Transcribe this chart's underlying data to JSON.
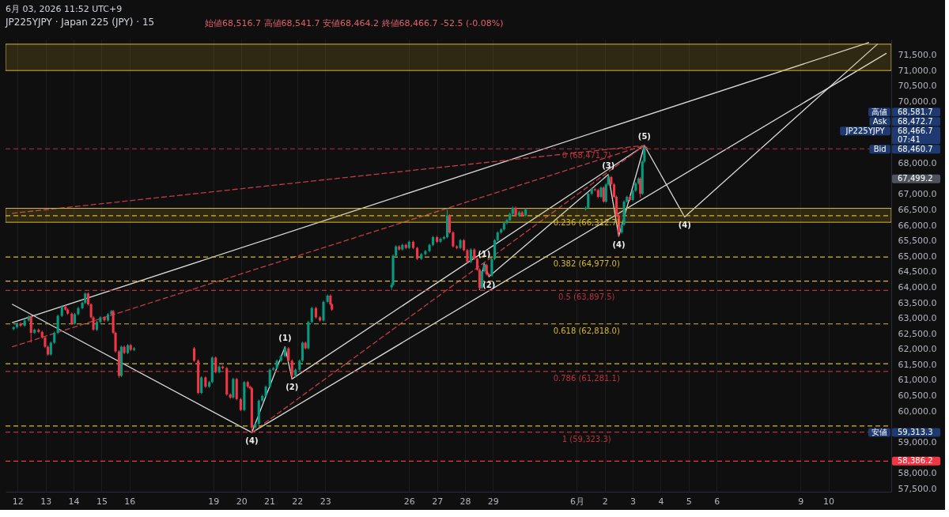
{
  "chart_data": {
    "type": "candlestick",
    "title": "JP225YJPY · Japan 225 (JPY) · 15",
    "subtitle": "始値68,516.7 高値68,541.7 安値68,464.2 終値68,466.7 -52.5 (-0.08%)",
    "x": [
      "2026-05-11T20:30",
      "2026-05-11T23:30",
      "2026-05-12T02:30",
      "2026-05-12T06:00",
      "2026-05-12T09:30",
      "2026-05-12T11:30",
      "2026-05-12T14:30",
      "2026-05-12T18:00",
      "2026-05-12T21:00",
      "2026-05-12T23:30",
      "2026-05-13T02:00",
      "2026-05-13T04:30",
      "2026-05-13T07:30",
      "2026-05-13T10:30",
      "2026-05-13T14:00",
      "2026-05-13T17:00",
      "2026-05-13T19:00",
      "2026-05-13T22:30",
      "2026-05-14T01:00",
      "2026-05-14T04:00",
      "2026-05-14T07:30",
      "2026-05-14T10:00",
      "2026-05-14T12:30",
      "2026-05-14T15:00",
      "2026-05-14T17:00",
      "2026-05-14T20:00",
      "2026-05-14T23:00",
      "2026-05-15T02:30",
      "2026-05-15T05:30",
      "2026-05-15T08:30",
      "2026-05-15T10:00",
      "2026-05-15T12:00",
      "2026-05-15T15:00",
      "2026-05-15T17:00",
      "2026-05-15T19:30",
      "2026-05-15T22:30",
      "2026-05-16T01:00",
      "2026-05-16T04:00",
      "2026-05-18T07:30",
      "2026-05-18T11:00",
      "2026-05-18T13:45",
      "2026-05-18T17:15",
      "2026-05-18T20:30",
      "2026-05-18T23:00",
      "2026-05-19T02:00",
      "2026-05-19T05:00",
      "2026-05-19T08:00",
      "2026-05-19T11:30",
      "2026-05-19T14:30",
      "2026-05-19T17:00",
      "2026-05-19T20:00",
      "2026-05-19T23:30",
      "2026-05-20T02:30",
      "2026-05-20T05:30",
      "2026-05-20T07:30",
      "2026-05-20T09:00",
      "2026-05-20T12:00",
      "2026-05-20T15:00",
      "2026-05-20T18:00",
      "2026-05-20T21:00",
      "2026-05-21T00:30",
      "2026-05-21T03:30",
      "2026-05-21T06:30",
      "2026-05-21T10:00",
      "2026-05-21T13:30",
      "2026-05-21T16:30",
      "2026-05-21T19:30",
      "2026-05-21T22:30",
      "2026-05-22T02:00",
      "2026-05-22T04:30",
      "2026-05-22T07:00",
      "2026-05-22T09:30",
      "2026-05-22T12:30",
      "2026-05-22T16:00",
      "2026-05-22T19:30",
      "2026-05-22T22:30",
      "2026-05-23T02:00",
      "2026-05-23T04:30",
      "2026-05-23T05:45",
      "2026-05-25T09:00",
      "2026-05-25T10:15",
      "2026-05-25T12:45",
      "2026-05-25T15:30",
      "2026-05-25T18:15",
      "2026-05-25T21:15",
      "2026-05-26T00:00",
      "2026-05-26T03:30",
      "2026-05-26T07:00",
      "2026-05-26T10:30",
      "2026-05-26T14:00",
      "2026-05-26T17:30",
      "2026-05-26T20:30",
      "2026-05-27T00:00",
      "2026-05-27T03:00",
      "2026-05-27T06:00",
      "2026-05-27T08:45",
      "2026-05-27T10:45",
      "2026-05-27T13:45",
      "2026-05-27T17:00",
      "2026-05-27T20:00",
      "2026-05-27T23:00",
      "2026-05-28T02:00",
      "2026-05-28T05:00",
      "2026-05-28T08:00",
      "2026-05-28T10:30",
      "2026-05-28T12:30",
      "2026-05-28T14:30",
      "2026-05-28T16:30",
      "2026-05-28T18:30",
      "2026-05-28T20:30",
      "2026-05-28T23:00",
      "2026-05-29T01:30",
      "2026-05-29T04:00",
      "2026-05-29T07:00",
      "2026-05-29T09:30",
      "2026-05-29T12:00",
      "2026-05-29T14:30",
      "2026-05-29T17:00",
      "2026-05-29T19:30",
      "2026-05-29T22:30",
      "2026-05-30T01:00",
      "2026-05-30T04:00",
      "2026-06-01T07:30",
      "2026-06-01T09:45",
      "2026-06-01T12:45",
      "2026-06-01T15:30",
      "2026-06-01T18:15",
      "2026-06-01T20:45",
      "2026-06-01T23:00",
      "2026-06-02T01:00",
      "2026-06-02T03:00",
      "2026-06-02T05:30",
      "2026-06-02T08:00",
      "2026-06-02T10:00",
      "2026-06-02T12:00",
      "2026-06-02T14:30",
      "2026-06-02T16:30",
      "2026-06-02T19:00",
      "2026-06-02T21:30",
      "2026-06-03T00:00",
      "2026-06-03T02:30",
      "2026-06-03T05:00",
      "2026-06-03T06:30",
      "2026-06-03T08:15",
      "2026-06-03T10:00",
      "2026-06-03T11:45"
    ],
    "ohlc": [
      [
        62650,
        62750,
        62610,
        62710
      ],
      [
        62710,
        62870,
        62670,
        62830
      ],
      [
        62830,
        62870,
        62720,
        62760
      ],
      [
        62760,
        62970,
        62720,
        62930
      ],
      [
        62930,
        63100,
        62890,
        63060
      ],
      [
        63060,
        63100,
        62210,
        62530
      ],
      [
        62530,
        62670,
        62490,
        62630
      ],
      [
        62630,
        62670,
        62520,
        62560
      ],
      [
        62560,
        62600,
        62340,
        62380
      ],
      [
        62380,
        62420,
        62040,
        62080
      ],
      [
        62080,
        62120,
        61790,
        61830
      ],
      [
        61830,
        62250,
        61790,
        62210
      ],
      [
        62210,
        62570,
        62170,
        62530
      ],
      [
        62530,
        63120,
        62490,
        63080
      ],
      [
        63080,
        63420,
        63040,
        63380
      ],
      [
        63380,
        63420,
        63240,
        63280
      ],
      [
        63280,
        63320,
        63110,
        63150
      ],
      [
        63150,
        63190,
        62790,
        62830
      ],
      [
        62830,
        63170,
        62790,
        63130
      ],
      [
        63130,
        63370,
        63090,
        63330
      ],
      [
        63330,
        63540,
        63290,
        63500
      ],
      [
        63500,
        63840,
        63460,
        63800
      ],
      [
        63800,
        63840,
        63410,
        63450
      ],
      [
        63450,
        63490,
        62990,
        63030
      ],
      [
        63030,
        63070,
        62590,
        62630
      ],
      [
        62630,
        62920,
        62590,
        62880
      ],
      [
        62880,
        63070,
        62840,
        63030
      ],
      [
        63030,
        63070,
        62890,
        62930
      ],
      [
        62930,
        63170,
        62890,
        63130
      ],
      [
        63130,
        63270,
        63090,
        63230
      ],
      [
        63230,
        63270,
        62490,
        62530
      ],
      [
        62530,
        62570,
        61890,
        61930
      ],
      [
        61930,
        61970,
        61080,
        61140
      ],
      [
        61140,
        62120,
        61100,
        62080
      ],
      [
        62080,
        62120,
        61840,
        61880
      ],
      [
        61880,
        62170,
        61840,
        62130
      ],
      [
        62130,
        62170,
        61940,
        61980
      ],
      [
        61980,
        62070,
        61940,
        62030
      ],
      [
        62030,
        62070,
        61590,
        61630
      ],
      [
        61630,
        61670,
        60550,
        60590
      ],
      [
        60590,
        61130,
        60550,
        61090
      ],
      [
        61090,
        61130,
        60750,
        60790
      ],
      [
        60790,
        60980,
        60750,
        60940
      ],
      [
        60940,
        61770,
        60900,
        61730
      ],
      [
        61730,
        61770,
        61220,
        61260
      ],
      [
        61260,
        61480,
        61220,
        61440
      ],
      [
        61440,
        61480,
        61350,
        61390
      ],
      [
        61390,
        61430,
        60500,
        60540
      ],
      [
        60540,
        60580,
        60400,
        60440
      ],
      [
        60440,
        61080,
        60400,
        61040
      ],
      [
        61040,
        61080,
        60350,
        60390
      ],
      [
        60390,
        60430,
        60000,
        60040
      ],
      [
        60040,
        60980,
        60000,
        60940
      ],
      [
        60940,
        60980,
        60750,
        60790
      ],
      [
        60790,
        60830,
        60700,
        60740
      ],
      [
        60740,
        60780,
        59313.3,
        59470
      ],
      [
        59470,
        59630,
        59430,
        59590
      ],
      [
        59590,
        60380,
        59550,
        60340
      ],
      [
        60340,
        60530,
        60300,
        60490
      ],
      [
        60490,
        60830,
        60450,
        60790
      ],
      [
        60790,
        61380,
        60750,
        61340
      ],
      [
        61340,
        61430,
        61300,
        61390
      ],
      [
        61390,
        61670,
        61350,
        61630
      ],
      [
        61630,
        61820,
        61590,
        61780
      ],
      [
        61780,
        62080,
        61740,
        62030
      ],
      [
        62030,
        62070,
        61590,
        61630
      ],
      [
        61630,
        61670,
        61040,
        61140
      ],
      [
        61140,
        61380,
        61100,
        61340
      ],
      [
        61340,
        61670,
        61300,
        61630
      ],
      [
        61630,
        62250,
        61590,
        62210
      ],
      [
        62210,
        62250,
        61990,
        62030
      ],
      [
        62030,
        62920,
        61990,
        62880
      ],
      [
        62880,
        63370,
        62840,
        63330
      ],
      [
        63330,
        63370,
        62990,
        63030
      ],
      [
        63030,
        63070,
        62890,
        62930
      ],
      [
        62930,
        63570,
        62890,
        63530
      ],
      [
        63530,
        63770,
        63490,
        63730
      ],
      [
        63730,
        63770,
        63410,
        63450
      ],
      [
        63450,
        63490,
        63240,
        63280
      ],
      [
        64000,
        64150,
        63900,
        64080
      ],
      [
        64080,
        65060,
        64040,
        65020
      ],
      [
        65020,
        65360,
        64980,
        65320
      ],
      [
        65320,
        65360,
        65180,
        65220
      ],
      [
        65220,
        65410,
        65180,
        65370
      ],
      [
        65370,
        65410,
        65230,
        65270
      ],
      [
        65270,
        65510,
        65230,
        65470
      ],
      [
        65470,
        65510,
        65230,
        65270
      ],
      [
        65270,
        65310,
        64880,
        64920
      ],
      [
        64920,
        65110,
        64880,
        65070
      ],
      [
        65070,
        65210,
        65030,
        65170
      ],
      [
        65170,
        65410,
        65130,
        65370
      ],
      [
        65370,
        65660,
        65330,
        65620
      ],
      [
        65620,
        65660,
        65430,
        65470
      ],
      [
        65470,
        65610,
        65430,
        65570
      ],
      [
        65570,
        65660,
        65530,
        65620
      ],
      [
        65620,
        66520,
        65580,
        66320
      ],
      [
        66320,
        66360,
        65730,
        65770
      ],
      [
        65770,
        65810,
        65280,
        65320
      ],
      [
        65320,
        65360,
        65230,
        65270
      ],
      [
        65270,
        65560,
        65230,
        65520
      ],
      [
        65520,
        65560,
        65160,
        65200
      ],
      [
        65200,
        65240,
        64780,
        64820
      ],
      [
        64820,
        65260,
        64780,
        65220
      ],
      [
        65220,
        65260,
        64880,
        64920
      ],
      [
        64920,
        64960,
        64530,
        64570
      ],
      [
        64570,
        64610,
        63930,
        63980
      ],
      [
        63980,
        64560,
        63940,
        64520
      ],
      [
        64520,
        64780,
        64480,
        64720
      ],
      [
        64720,
        64760,
        64380,
        64420
      ],
      [
        64420,
        64460,
        64340,
        64380
      ],
      [
        64380,
        64960,
        64340,
        64920
      ],
      [
        64920,
        65560,
        64880,
        65520
      ],
      [
        65520,
        65810,
        65480,
        65770
      ],
      [
        65770,
        65910,
        65730,
        65870
      ],
      [
        65870,
        66110,
        65830,
        66070
      ],
      [
        66070,
        66210,
        66030,
        66170
      ],
      [
        66170,
        66410,
        66130,
        66370
      ],
      [
        66370,
        66610,
        66330,
        66570
      ],
      [
        66570,
        66610,
        66280,
        66320
      ],
      [
        66320,
        66460,
        66280,
        66420
      ],
      [
        66420,
        66460,
        66280,
        66320
      ],
      [
        66320,
        66560,
        66280,
        66520
      ],
      [
        66520,
        66610,
        66480,
        66570
      ],
      [
        66570,
        67060,
        66530,
        67020
      ],
      [
        67020,
        67210,
        66980,
        67170
      ],
      [
        67170,
        67210,
        67100,
        67140
      ],
      [
        67140,
        67180,
        66880,
        66920
      ],
      [
        66920,
        67260,
        66880,
        67220
      ],
      [
        67220,
        67260,
        66730,
        66770
      ],
      [
        66770,
        67360,
        66730,
        67320
      ],
      [
        67320,
        67640,
        67280,
        67560
      ],
      [
        67560,
        67600,
        67280,
        67320
      ],
      [
        67320,
        67360,
        66880,
        66920
      ],
      [
        66920,
        66960,
        66280,
        66320
      ],
      [
        66320,
        66360,
        65650,
        65770
      ],
      [
        65770,
        66060,
        65730,
        66020
      ],
      [
        66020,
        66810,
        65980,
        66770
      ],
      [
        66770,
        66960,
        66730,
        66920
      ],
      [
        66920,
        66960,
        66780,
        66820
      ],
      [
        66820,
        67160,
        66780,
        67120
      ],
      [
        67120,
        67400,
        67080,
        67360
      ],
      [
        67360,
        67550,
        67320,
        67510
      ],
      [
        67510,
        67550,
        66890,
        67020
      ],
      [
        67020,
        68100,
        66980,
        68060
      ],
      [
        68060,
        68581.7,
        68020,
        68516.7
      ],
      [
        68516.7,
        68541.7,
        68464.2,
        68466.7
      ]
    ],
    "colors": [
      "#089981",
      "#089981",
      "#f23645",
      "#089981",
      "#089981",
      "#f23645",
      "#089981",
      "#f23645",
      "#f23645",
      "#f23645",
      "#f23645",
      "#089981",
      "#089981",
      "#089981",
      "#089981",
      "#f23645",
      "#f23645",
      "#f23645",
      "#089981",
      "#089981",
      "#089981",
      "#089981",
      "#f23645",
      "#f23645",
      "#f23645",
      "#089981",
      "#089981",
      "#f23645",
      "#089981",
      "#089981",
      "#f23645",
      "#f23645",
      "#f23645",
      "#089981",
      "#f23645",
      "#089981",
      "#f23645",
      "#089981",
      "#f23645",
      "#f23645",
      "#089981",
      "#f23645",
      "#089981",
      "#089981",
      "#f23645",
      "#089981",
      "#f23645",
      "#f23645",
      "#f23645",
      "#089981",
      "#f23645",
      "#f23645",
      "#089981",
      "#f23645",
      "#f23645",
      "#f23645",
      "#089981",
      "#089981",
      "#089981",
      "#089981",
      "#089981",
      "#089981",
      "#089981",
      "#089981",
      "#089981",
      "#f23645",
      "#f23645",
      "#089981",
      "#089981",
      "#089981",
      "#f23645",
      "#089981",
      "#089981",
      "#f23645",
      "#f23645",
      "#089981",
      "#089981",
      "#f23645",
      "#f23645",
      "#089981",
      "#089981",
      "#089981",
      "#f23645",
      "#089981",
      "#f23645",
      "#089981",
      "#f23645",
      "#f23645",
      "#089981",
      "#089981",
      "#089981",
      "#089981",
      "#f23645",
      "#089981",
      "#089981",
      "#089981",
      "#f23645",
      "#f23645",
      "#f23645",
      "#089981",
      "#f23645",
      "#f23645",
      "#089981",
      "#f23645",
      "#f23645",
      "#f23645",
      "#089981",
      "#089981",
      "#f23645",
      "#f23645",
      "#089981",
      "#089981",
      "#089981",
      "#089981",
      "#089981",
      "#089981",
      "#089981",
      "#089981",
      "#f23645",
      "#089981",
      "#f23645",
      "#089981",
      "#089981",
      "#089981",
      "#089981",
      "#f23645",
      "#f23645",
      "#089981",
      "#f23645",
      "#089981",
      "#089981",
      "#f23645",
      "#f23645",
      "#f23645",
      "#f23645",
      "#089981",
      "#089981",
      "#089981",
      "#f23645",
      "#089981",
      "#089981",
      "#089981",
      "#f23645",
      "#089981",
      "#089981",
      "#f23645"
    ],
    "series": [
      {
        "type": "line",
        "color": "#d9d9d9",
        "line_style": "solid",
        "x": [
          "2026-05-11T19:30",
          "2026-06-11T10:30"
        ],
        "values": [
          62860,
          71900
        ]
      },
      {
        "type": "line",
        "color": "#d9d9d9",
        "line_style": "solid",
        "x": [
          "2026-05-11T19:30",
          "2026-05-20T09:00"
        ],
        "values": [
          63450,
          59310
        ]
      },
      {
        "type": "line",
        "color": "#d9d9d9",
        "line_style": "solid",
        "x": [
          "2026-05-20T09:00",
          "2026-06-12T01:30"
        ],
        "values": [
          59310,
          71550
        ]
      },
      {
        "type": "line",
        "color": "#d9d9d9",
        "line_style": "solid",
        "x": [
          "2026-05-21T19:30",
          "2026-06-03T10:00"
        ],
        "values": [
          61040,
          68580
        ]
      },
      {
        "type": "line",
        "color": "#d9d9d9",
        "line_style": "solid",
        "x": [
          "2026-05-20T09:00",
          "2026-05-21T13:30",
          "2026-05-21T19:30"
        ],
        "values": [
          59310,
          62080,
          61040
        ]
      },
      {
        "type": "line",
        "color": "#d9d9d9",
        "line_style": "solid",
        "x": [
          "2026-05-28T12:30",
          "2026-05-28T16:30",
          "2026-05-28T20:30",
          "2026-06-02T03:00",
          "2026-06-02T12:00",
          "2026-06-03T10:00",
          "2026-06-04T20:30",
          "2026-06-11T18:00"
        ],
        "values": [
          63930,
          64780,
          64340,
          67640,
          65650,
          68580,
          66270,
          71850
        ]
      },
      {
        "type": "line",
        "color": "#c23b45",
        "line_style": "dashed",
        "x": [
          "2026-05-11T19:30",
          "2026-06-03T10:00"
        ],
        "values": [
          62080,
          68580
        ]
      },
      {
        "type": "line",
        "color": "#c23b45",
        "line_style": "dashed",
        "x": [
          "2026-05-11T19:30",
          "2026-06-03T10:00"
        ],
        "values": [
          66390,
          68580
        ]
      },
      {
        "type": "line",
        "color": "#c23b45",
        "line_style": "dashed",
        "x": [
          "2026-05-20T09:00",
          "2026-06-03T10:00"
        ],
        "values": [
          59310,
          68580
        ]
      }
    ],
    "xlim": [
      "2026-05-11T17:00",
      "2026-06-12T02:30"
    ],
    "ylim": [
      57400,
      72000
    ],
    "xticks": [
      {
        "value": "2026-05-12",
        "label": "12"
      },
      {
        "value": "2026-05-13",
        "label": "13"
      },
      {
        "value": "2026-05-14",
        "label": "14"
      },
      {
        "value": "2026-05-15",
        "label": "15"
      },
      {
        "value": "2026-05-16",
        "label": "16"
      },
      {
        "value": "2026-05-19",
        "label": "19"
      },
      {
        "value": "2026-05-20",
        "label": "20"
      },
      {
        "value": "2026-05-21",
        "label": "21"
      },
      {
        "value": "2026-05-22",
        "label": "22"
      },
      {
        "value": "2026-05-23",
        "label": "23"
      },
      {
        "value": "2026-05-26",
        "label": "26"
      },
      {
        "value": "2026-05-27",
        "label": "27"
      },
      {
        "value": "2026-05-28",
        "label": "28"
      },
      {
        "value": "2026-05-29",
        "label": "29"
      },
      {
        "value": "2026-06-01",
        "label": "6月"
      },
      {
        "value": "2026-06-02",
        "label": "2"
      },
      {
        "value": "2026-06-03",
        "label": "3"
      },
      {
        "value": "2026-06-04",
        "label": "4"
      },
      {
        "value": "2026-06-05",
        "label": "5"
      },
      {
        "value": "2026-06-06",
        "label": "6"
      },
      {
        "value": "2026-06-09",
        "label": "9"
      },
      {
        "value": "2026-06-10",
        "label": "10"
      }
    ],
    "yticks": [
      {
        "value": 57500,
        "label": "57,500.0"
      },
      {
        "value": 58000,
        "label": "58,000.0"
      },
      {
        "value": 59000,
        "label": "59,000.0"
      },
      {
        "value": 60000,
        "label": "60,000.0"
      },
      {
        "value": 60500,
        "label": "60,500.0"
      },
      {
        "value": 61000,
        "label": "61,000.0"
      },
      {
        "value": 61500,
        "label": "61,500.0"
      },
      {
        "value": 62000,
        "label": "62,000.0"
      },
      {
        "value": 62500,
        "label": "62,500.0"
      },
      {
        "value": 63000,
        "label": "63,000.0"
      },
      {
        "value": 63500,
        "label": "63,500.0"
      },
      {
        "value": 64000,
        "label": "64,000.0"
      },
      {
        "value": 64500,
        "label": "64,500.0"
      },
      {
        "value": 65000,
        "label": "65,000.0"
      },
      {
        "value": 65500,
        "label": "65,500.0"
      },
      {
        "value": 66000,
        "label": "66,000.0"
      },
      {
        "value": 66500,
        "label": "66,500.0"
      },
      {
        "value": 67000,
        "label": "67,000.0"
      },
      {
        "value": 68000,
        "label": "68,000.0"
      },
      {
        "value": 70000,
        "label": "70,000.0"
      },
      {
        "value": 70500,
        "label": "70,500.0"
      },
      {
        "value": 71000,
        "label": "71,000.0"
      },
      {
        "value": 71500,
        "label": "71,500.0"
      }
    ],
    "grid": "x",
    "bands": [
      {
        "axis": "y",
        "from": 66100,
        "to": 66550,
        "color": "#d8b72b"
      },
      {
        "axis": "y",
        "from": 71000,
        "to": 71850,
        "color": "#d8b72b"
      }
    ],
    "ref_lines": [
      {
        "axis": "y",
        "value": 68471.7,
        "label": "0 (68,471.7)",
        "color": "#b8323d",
        "line_style": "dashed"
      },
      {
        "axis": "y",
        "value": 66312.7,
        "label": "0.236 (66,312.7)",
        "color": "#d8b72b",
        "line_style": "dashed"
      },
      {
        "axis": "y",
        "value": 63897.5,
        "label": "0.5 (63,897.5)",
        "color": "#b8323d",
        "line_style": "dashed"
      },
      {
        "axis": "y",
        "value": 62818.0,
        "label": "0.618 (62,818.0)",
        "color": "#d8b72b",
        "line_style": "dashed"
      },
      {
        "axis": "y",
        "value": 61281.1,
        "label": "0.786 (61,281.1)",
        "color": "#b8323d",
        "line_style": "dashed"
      },
      {
        "axis": "y",
        "value": 59323.3,
        "label": "1 (59,323.3)",
        "color": "#b8323d",
        "line_style": "dashed"
      },
      {
        "axis": "y",
        "value": 64200,
        "color": "#d8b72b",
        "line_style": "dashed"
      },
      {
        "axis": "y",
        "value": 58386.2,
        "color": "#f23645",
        "line_style": "dashed"
      },
      {
        "axis": "y",
        "value": 64977.0,
        "label": "0.382 (64,977.0)",
        "color": "#d8b72b",
        "line_style": "dashed"
      },
      {
        "axis": "y",
        "value": 61530,
        "color": "#d8b72b",
        "line_style": "dashed"
      },
      {
        "axis": "y",
        "value": 59520,
        "color": "#d8b72b",
        "line_style": "dashed"
      }
    ],
    "annotations": [
      "6月 03, 2026 11:52 UTC+9",
      {
        "text": "(4)",
        "x": "2026-05-20T09:00",
        "y": 59310
      },
      {
        "text": "(1)",
        "x": "2026-05-21T13:30",
        "y": 62080
      },
      {
        "text": "(2)",
        "x": "2026-05-21T19:30",
        "y": 61040
      },
      {
        "text": "(1)",
        "x": "2026-05-28T16:30",
        "y": 64780
      },
      {
        "text": "(2)",
        "x": "2026-05-28T20:30",
        "y": 64340
      },
      {
        "text": "(3)",
        "x": "2026-06-02T03:00",
        "y": 67640
      },
      {
        "text": "(4)",
        "x": "2026-06-02T12:00",
        "y": 65650
      },
      {
        "text": "(5)",
        "x": "2026-06-03T10:00",
        "y": 68580
      },
      {
        "text": "(4)",
        "x": "2026-06-04T20:30",
        "y": 66270
      },
      "高値",
      "68,581.7",
      "Ask",
      "68,472.7",
      "JP225YJPY",
      "68,466.7",
      "07:41",
      "Bid",
      "68,460.7",
      "67,499.2",
      "安値",
      "59,313.3",
      "58,386.2"
    ]
  }
}
